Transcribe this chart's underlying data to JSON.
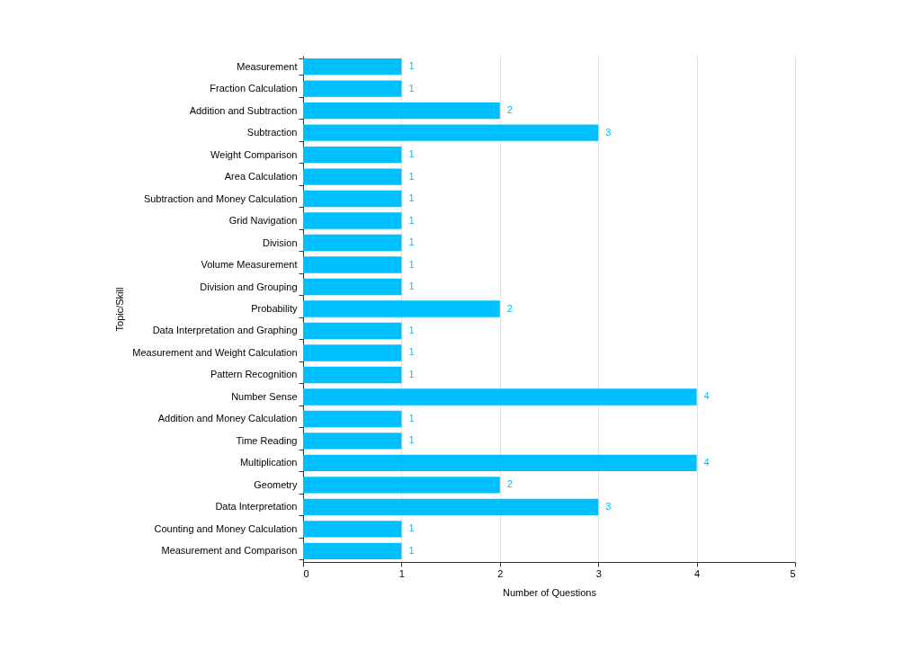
{
  "chart_data": {
    "type": "bar",
    "orientation": "horizontal",
    "xlabel": "Number of Questions",
    "ylabel": "Topic/Skill",
    "categories": [
      "Measurement",
      "Fraction Calculation",
      "Addition and Subtraction",
      "Subtraction",
      "Weight Comparison",
      "Area Calculation",
      "Subtraction and Money Calculation",
      "Grid Navigation",
      "Division",
      "Volume Measurement",
      "Division and Grouping",
      "Probability",
      "Data Interpretation and Graphing",
      "Measurement and Weight Calculation",
      "Pattern Recognition",
      "Number Sense",
      "Addition and Money Calculation",
      "Time Reading",
      "Multiplication",
      "Geometry",
      "Data Interpretation",
      "Counting and Money Calculation",
      "Measurement and Comparison"
    ],
    "values": [
      1,
      1,
      2,
      3,
      1,
      1,
      1,
      1,
      1,
      1,
      1,
      2,
      1,
      1,
      1,
      4,
      1,
      1,
      4,
      2,
      3,
      1,
      1
    ],
    "color": "#00bfff",
    "xlim": [
      0,
      5
    ],
    "xticks": [
      0,
      1,
      2,
      3,
      4,
      5
    ],
    "grid": "x",
    "data_labels": true
  }
}
